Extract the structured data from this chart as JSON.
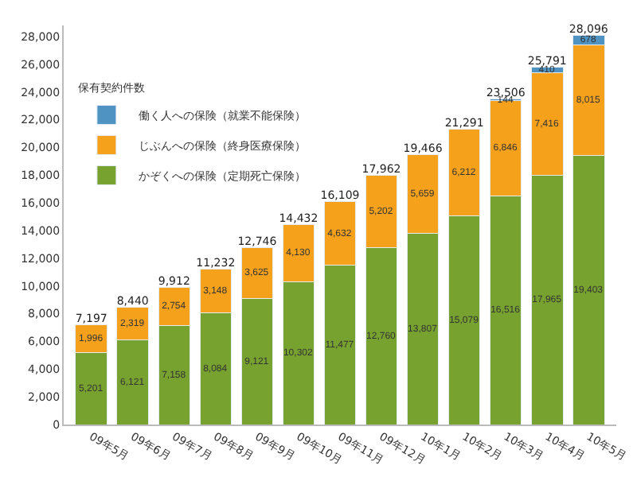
{
  "chart_data": {
    "type": "bar",
    "stacked": true,
    "legend_title": "保有契約件数",
    "categories": [
      "09年5月",
      "09年6月",
      "09年7月",
      "09年8月",
      "09年9月",
      "09年10月",
      "09年11月",
      "09年12月",
      "10年1月",
      "10年2月",
      "10年3月",
      "10年4月",
      "10年5月"
    ],
    "series": [
      {
        "name": "かぞくへの保険（定期死亡保険）",
        "color": "#77a22f",
        "values": [
          5201,
          6121,
          7158,
          8084,
          9121,
          10302,
          11477,
          12760,
          13807,
          15079,
          16516,
          17965,
          19403
        ],
        "value_labels": [
          "5,201",
          "6,121",
          "7,158",
          "8,084",
          "9,121",
          "10,302",
          "11,477",
          "12,760",
          "13,807",
          "15,079",
          "16,516",
          "17,965",
          "19,403"
        ]
      },
      {
        "name": "じぶんへの保険（終身医療保険）",
        "color": "#f5a11c",
        "values": [
          1996,
          2319,
          2754,
          3148,
          3625,
          4130,
          4632,
          5202,
          5659,
          6212,
          6846,
          7416,
          8015
        ],
        "value_labels": [
          "1,996",
          "2,319",
          "2,754",
          "3,148",
          "3,625",
          "4,130",
          "4,632",
          "5,202",
          "5,659",
          "6,212",
          "6,846",
          "7,416",
          "8,015"
        ]
      },
      {
        "name": "働く人への保険（就業不能保険）",
        "color": "#4f93c3",
        "values": [
          null,
          null,
          null,
          null,
          null,
          null,
          null,
          null,
          null,
          null,
          144,
          410,
          678
        ],
        "value_labels": [
          null,
          null,
          null,
          null,
          null,
          null,
          null,
          null,
          null,
          null,
          "144",
          "410",
          "678"
        ]
      }
    ],
    "totals": [
      "7,197",
      "8,440",
      "9,912",
      "11,232",
      "12,746",
      "14,432",
      "16,109",
      "17,962",
      "19,466",
      "21,291",
      "23,506",
      "25,791",
      "28,096"
    ],
    "ylim": [
      0,
      28800
    ],
    "yticks": [
      {
        "value": 0,
        "label": "0"
      },
      {
        "value": 2000,
        "label": "2,000"
      },
      {
        "value": 4000,
        "label": "4,000"
      },
      {
        "value": 6000,
        "label": "6,000"
      },
      {
        "value": 8000,
        "label": "8,000"
      },
      {
        "value": 10000,
        "label": "10,000"
      },
      {
        "value": 12000,
        "label": "12,000"
      },
      {
        "value": 14000,
        "label": "14,000"
      },
      {
        "value": 16000,
        "label": "16,000"
      },
      {
        "value": 18000,
        "label": "18,000"
      },
      {
        "value": 20000,
        "label": "20,000"
      },
      {
        "value": 22000,
        "label": "22,000"
      },
      {
        "value": 24000,
        "label": "24,000"
      },
      {
        "value": 26000,
        "label": "26,000"
      },
      {
        "value": 28000,
        "label": "28,000"
      }
    ],
    "legend": "top left"
  }
}
